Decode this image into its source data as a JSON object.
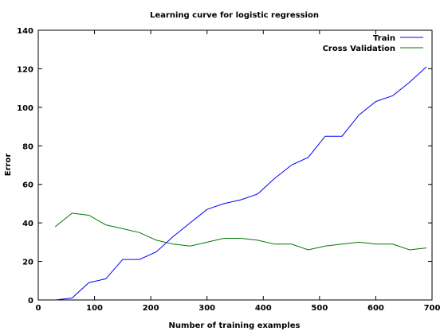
{
  "chart_data": {
    "type": "line",
    "title": "Learning curve for logistic regression",
    "xlabel": "Number of training examples",
    "ylabel": "Error",
    "xlim": [
      0,
      700
    ],
    "ylim": [
      0,
      140
    ],
    "xticks": [
      0,
      100,
      200,
      300,
      400,
      500,
      600,
      700
    ],
    "yticks": [
      0,
      20,
      40,
      60,
      80,
      100,
      120,
      140
    ],
    "xtick_labels": [
      "0",
      "100",
      "200",
      "300",
      "400",
      "500",
      "600",
      "700"
    ],
    "ytick_labels": [
      "0",
      "20",
      "40",
      "60",
      "80",
      "100",
      "120",
      "140"
    ],
    "grid": false,
    "legend_position": "top-right",
    "x": [
      30,
      60,
      90,
      120,
      150,
      180,
      210,
      240,
      270,
      300,
      330,
      360,
      390,
      420,
      450,
      480,
      510,
      540,
      570,
      600,
      630,
      660,
      690
    ],
    "series": [
      {
        "name": "Train",
        "color": "#0000ff",
        "values": [
          0,
          1,
          9,
          11,
          21,
          21,
          25,
          33,
          40,
          47,
          50,
          52,
          55,
          63,
          70,
          74,
          85,
          85,
          96,
          103,
          106,
          113,
          121
        ]
      },
      {
        "name": "Cross Validation",
        "color": "#007700",
        "values": [
          38,
          45,
          44,
          39,
          37,
          35,
          31,
          29,
          28,
          30,
          32,
          32,
          31,
          29,
          29,
          26,
          28,
          29,
          30,
          29,
          29,
          26,
          27
        ]
      }
    ]
  }
}
